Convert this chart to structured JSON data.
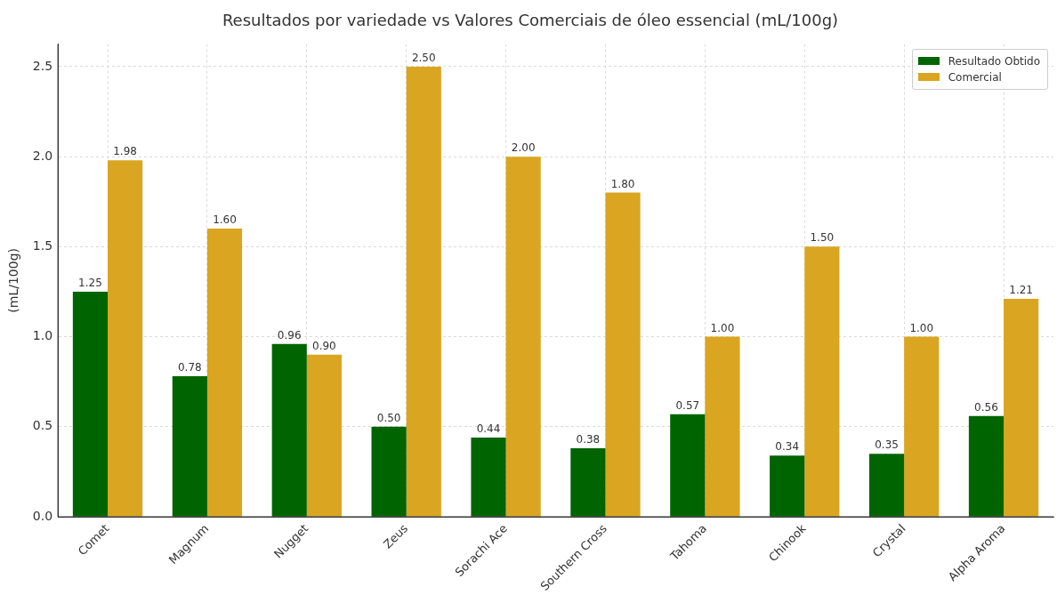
{
  "chart_data": {
    "type": "bar",
    "title": "Resultados por variedade vs Valores Comerciais de óleo essencial (mL/100g)",
    "ylabel": "(mL/100g)",
    "categories": [
      "Comet",
      "Magnum",
      "Nugget",
      "Zeus",
      "Sorachi Ace",
      "Southern Cross",
      "Tahoma",
      "Chinook",
      "Crystal",
      "Alpha Aroma"
    ],
    "series": [
      {
        "name": "Resultado Obtido",
        "color": "#006400",
        "values": [
          1.25,
          0.78,
          0.96,
          0.5,
          0.44,
          0.38,
          0.57,
          0.34,
          0.35,
          0.56
        ],
        "value_labels": [
          "1.25",
          "0.78",
          "0.96",
          "0.50",
          "0.44",
          "0.38",
          "0.57",
          "0.34",
          "0.35",
          "0.56"
        ]
      },
      {
        "name": "Comercial",
        "color": "#daa520",
        "values": [
          1.98,
          1.6,
          0.9,
          2.5,
          2.0,
          1.8,
          1.0,
          1.5,
          1.0,
          1.21
        ],
        "value_labels": [
          "1.98",
          "1.60",
          "0.90",
          "2.50",
          "2.00",
          "1.80",
          "1.00",
          "1.50",
          "1.00",
          "1.21"
        ]
      }
    ],
    "ylim": [
      0,
      2.625
    ],
    "yticks": [
      {
        "value": 0,
        "label": "0.0"
      },
      0.5,
      {
        "value": 1,
        "label": "1.0"
      },
      1.5,
      {
        "value": 2,
        "label": "2.0"
      },
      2.5
    ],
    "grid": true,
    "legend": "top right"
  }
}
